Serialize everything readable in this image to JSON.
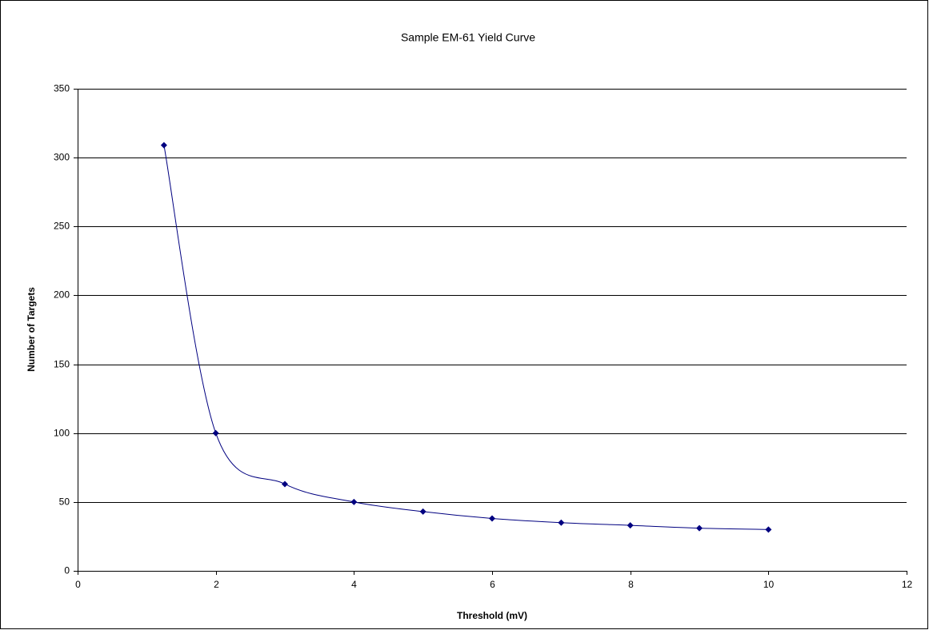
{
  "chart_data": {
    "type": "scatter",
    "title": "Sample EM-61 Yield Curve",
    "x_label": "Threshold (mV)",
    "y_label": "Number of Targets",
    "x": [
      1.25,
      2,
      3,
      4,
      5,
      6,
      7,
      8,
      9,
      10
    ],
    "values": [
      309,
      100,
      63,
      50,
      43,
      38,
      35,
      33,
      31,
      30
    ],
    "color": "#000080",
    "smooth": true,
    "grid": true,
    "xlim": [
      0,
      12
    ],
    "xticks": [
      0,
      2,
      4,
      6,
      8,
      10,
      12
    ],
    "ylim": [
      0,
      350
    ],
    "yticks": [
      0,
      50,
      100,
      150,
      200,
      250,
      300,
      350
    ]
  }
}
